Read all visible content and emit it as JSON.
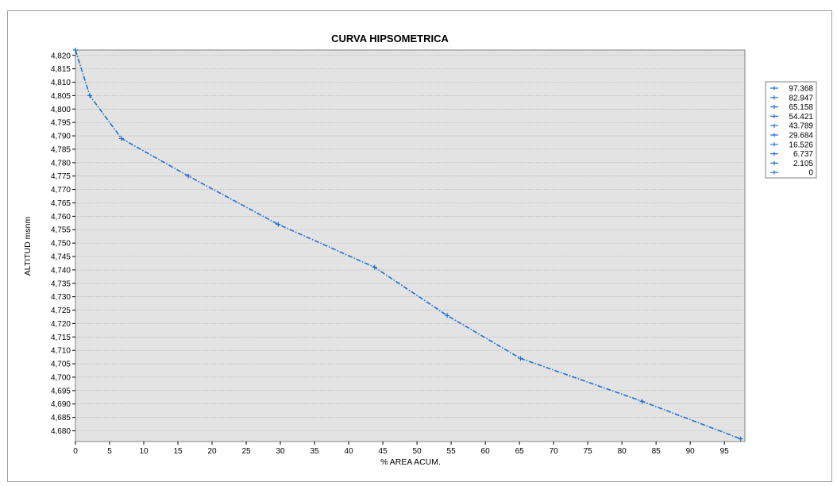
{
  "chart_data": {
    "type": "line",
    "title": "CURVA HIPSOMETRICA",
    "xlabel": "% AREA ACUM.",
    "ylabel": "ALTITUD msnm",
    "xlim": [
      0,
      98
    ],
    "ylim": [
      4676,
      4822
    ],
    "x_ticks": [
      "0",
      "5",
      "10",
      "15",
      "20",
      "25",
      "30",
      "35",
      "40",
      "45",
      "50",
      "55",
      "60",
      "65",
      "70",
      "75",
      "80",
      "85",
      "90",
      "95"
    ],
    "y_ticks": [
      "4,680",
      "4,685",
      "4,690",
      "4,695",
      "4,700",
      "4,705",
      "4,710",
      "4,715",
      "4,720",
      "4,725",
      "4,730",
      "4,735",
      "4,740",
      "4,745",
      "4,750",
      "4,755",
      "4,760",
      "4,765",
      "4,770",
      "4,775",
      "4,780",
      "4,785",
      "4,790",
      "4,795",
      "4,800",
      "4,805",
      "4,810",
      "4,815",
      "4,820"
    ],
    "grid": true,
    "legend_position": "right",
    "legend": [
      "97.368",
      "82.947",
      "65.158",
      "54.421",
      "43.789",
      "29.684",
      "16.526",
      "6.737",
      "2.105",
      "0"
    ],
    "series": [
      {
        "x": [
          0,
          2.105,
          6.737,
          16.526,
          29.684,
          43.789,
          54.421,
          65.158,
          82.947,
          97.368
        ],
        "y": [
          4822,
          4805,
          4789,
          4775,
          4757,
          4741,
          4723,
          4707,
          4691,
          4677
        ]
      }
    ],
    "colors": {
      "line": "#1f6fd0",
      "plot_bg": "#e3e3e3",
      "grid": "#a8a8a8"
    }
  }
}
